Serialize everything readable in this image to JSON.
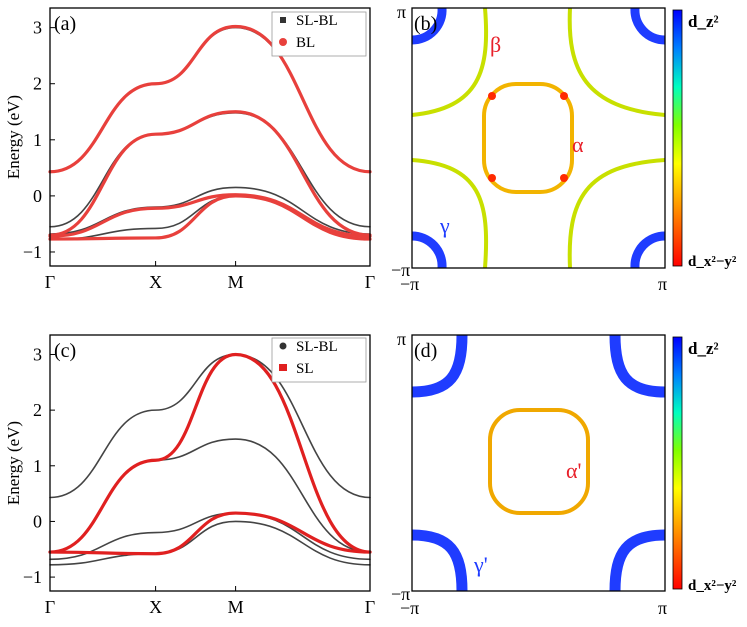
{
  "chart_data": [
    {
      "type": "line",
      "panel": "(a)",
      "ylabel": "Energy (eV)",
      "x_ticks": [
        "Γ",
        "X",
        "M",
        "Γ"
      ],
      "y_ticks": [
        "−1",
        "0",
        "1",
        "2",
        "3"
      ],
      "ylim": [
        -1.25,
        3.35
      ],
      "legend": [
        {
          "name": "SL-BL",
          "marker": "square",
          "color": "#333333"
        },
        {
          "name": "BL",
          "marker": "circle",
          "color": "#e8403c"
        }
      ],
      "legend_position": "top-right",
      "series": [
        {
          "name": "SL-BL",
          "color": "#444444",
          "x": [
            0,
            0.33,
            0.58,
            1
          ],
          "bands": [
            [
              0.43,
              2.0,
              3.0,
              0.43
            ],
            [
              -0.55,
              1.1,
              1.48,
              -0.55
            ],
            [
              -0.68,
              -0.2,
              0.15,
              -0.68
            ],
            [
              -0.78,
              -0.58,
              0.0,
              -0.78
            ]
          ]
        },
        {
          "name": "BL",
          "color": "#e8403c",
          "x": [
            0,
            0.33,
            0.58,
            1
          ],
          "bands": [
            [
              0.43,
              2.0,
              3.02,
              0.43
            ],
            [
              -0.7,
              1.1,
              1.5,
              -0.7
            ],
            [
              -0.72,
              -0.22,
              0.02,
              -0.72
            ],
            [
              -0.77,
              -0.75,
              0.0,
              -0.77
            ]
          ]
        }
      ]
    },
    {
      "type": "heatmap",
      "panel": "(b)",
      "x_ticks": [
        "−π",
        "π"
      ],
      "y_ticks": [
        "−π",
        "π"
      ],
      "colorbar": {
        "top": "d_z²",
        "bottom": "d_x²−y²"
      },
      "annotations": [
        "β",
        "α",
        "γ"
      ]
    },
    {
      "type": "line",
      "panel": "(c)",
      "ylabel": "Energy (eV)",
      "x_ticks": [
        "Γ",
        "X",
        "M",
        "Γ"
      ],
      "y_ticks": [
        "−1",
        "0",
        "1",
        "2",
        "3"
      ],
      "ylim": [
        -1.25,
        3.35
      ],
      "legend": [
        {
          "name": "SL-BL",
          "marker": "circle",
          "color": "#333333"
        },
        {
          "name": "SL",
          "marker": "square",
          "color": "#e02020"
        }
      ],
      "legend_position": "top-right",
      "series": [
        {
          "name": "SL-BL",
          "color": "#444444",
          "x": [
            0,
            0.33,
            0.58,
            1
          ],
          "bands": [
            [
              0.43,
              2.0,
              3.0,
              0.43
            ],
            [
              -0.55,
              1.1,
              1.48,
              -0.55
            ],
            [
              -0.68,
              -0.2,
              0.15,
              -0.68
            ],
            [
              -0.78,
              -0.58,
              0.0,
              -0.78
            ]
          ]
        },
        {
          "name": "SL",
          "color": "#e02020",
          "x": [
            0,
            0.33,
            0.58,
            1
          ],
          "bands": [
            [
              -0.55,
              1.1,
              3.0,
              -0.55
            ],
            [
              -0.55,
              -0.58,
              0.15,
              -0.55
            ]
          ]
        }
      ]
    },
    {
      "type": "heatmap",
      "panel": "(d)",
      "x_ticks": [
        "−π",
        "π"
      ],
      "y_ticks": [
        "−π",
        "π"
      ],
      "colorbar": {
        "top": "d_z²",
        "bottom": "d_x²−y²"
      },
      "annotations": [
        "α'",
        "γ'"
      ]
    }
  ]
}
